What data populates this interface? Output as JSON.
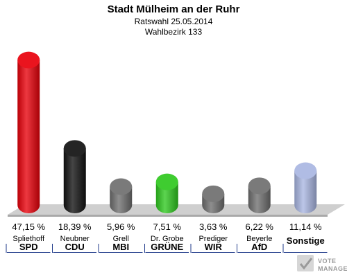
{
  "header": {
    "title": "Stadt Mülheim an der Ruhr",
    "subtitle": "Ratswahl 25.05.2014",
    "district": "Wahlbezirk 133"
  },
  "logo": {
    "line1": "VOTE",
    "line2": "MANAGER"
  },
  "colors": {
    "floor_top": "#cfcfcf",
    "floor_front": "#a9a9a9",
    "separator": "#1f3a8a"
  },
  "chart_data": {
    "type": "bar",
    "title": "Stadt Mülheim an der Ruhr",
    "subtitle": "Ratswahl 25.05.2014 · Wahlbezirk 133",
    "categories": [
      "SPD",
      "CDU",
      "MBI",
      "GRÜNE",
      "WIR",
      "AfD",
      "Sonstige"
    ],
    "candidates": [
      "Spliethoff",
      "Neubner",
      "Grell",
      "Dr. Grobe",
      "Prediger",
      "Beyerle",
      ""
    ],
    "values": [
      47.15,
      18.39,
      5.96,
      7.51,
      3.63,
      6.22,
      11.14
    ],
    "value_labels": [
      "47,15 %",
      "18,39 %",
      "5,96 %",
      "7,51 %",
      "3,63 %",
      "6,22 %",
      "11,14 %"
    ],
    "colors": [
      "#e8000a",
      "#111111",
      "#6e6e6e",
      "#2ec81e",
      "#6e6e6e",
      "#6e6e6e",
      "#a9b6e2"
    ],
    "ylim": [
      0,
      50
    ],
    "grid": false,
    "legend": "none"
  }
}
